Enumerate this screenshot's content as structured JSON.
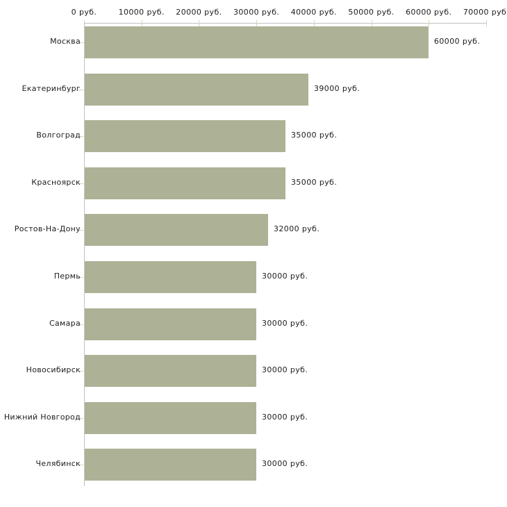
{
  "chart_data": {
    "type": "bar",
    "orientation": "horizontal",
    "title": "",
    "xlabel": "",
    "ylabel": "",
    "unit": "руб.",
    "categories": [
      "Москва",
      "Екатеринбург",
      "Волгоград",
      "Красноярск",
      "Ростов-На-Дону",
      "Пермь",
      "Самара",
      "Новосибирск",
      "Нижний Новгород",
      "Челябинск"
    ],
    "values": [
      60000,
      39000,
      35000,
      35000,
      32000,
      30000,
      30000,
      30000,
      30000,
      30000
    ],
    "bar_labels": [
      "60000 руб.",
      "39000 руб.",
      "35000 руб.",
      "35000 руб.",
      "32000 руб.",
      "30000 руб.",
      "30000 руб.",
      "30000 руб.",
      "30000 руб.",
      "30000 руб."
    ],
    "x_tick_values": [
      0,
      10000,
      20000,
      30000,
      40000,
      50000,
      60000,
      70000
    ],
    "x_tick_labels": [
      "0 руб.",
      "10000 руб.",
      "20000 руб.",
      "30000 руб.",
      "40000 руб.",
      "50000 руб.",
      "60000 руб.",
      "70000 руб."
    ],
    "xlim": [
      0,
      70000
    ],
    "grid": false,
    "legend": false,
    "value_label_position": "right-of-bar",
    "colors": {
      "bar": "#adb296",
      "axis_line": "#c1c1c1",
      "tick_mark": "#d4d6ab",
      "text": "#1c1c1c",
      "background": "#ffffff"
    }
  }
}
